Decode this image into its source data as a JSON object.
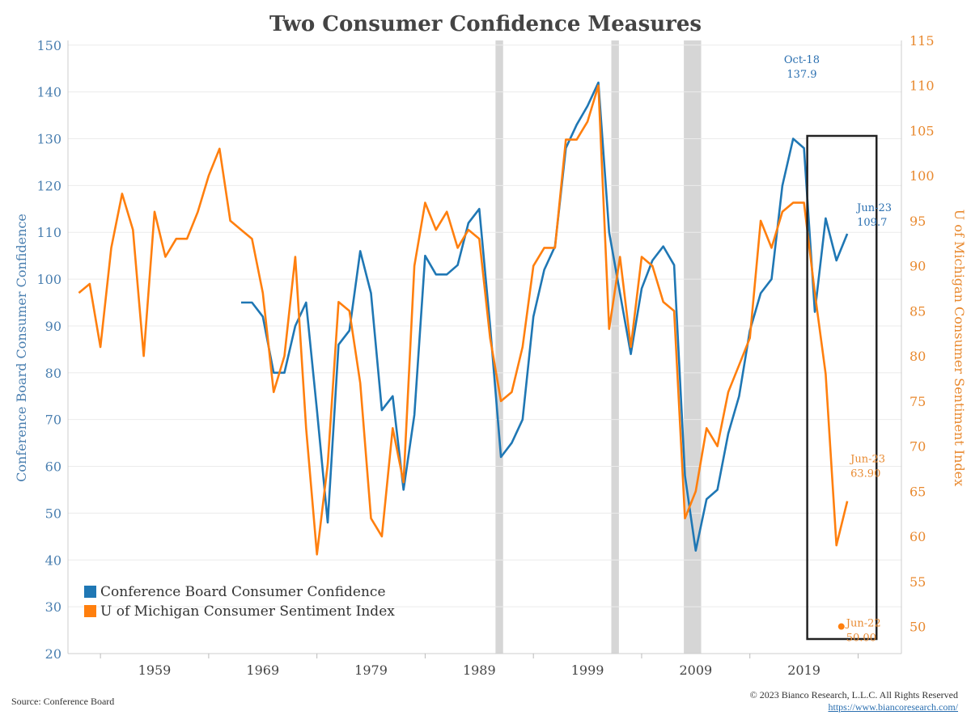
{
  "chart_data": {
    "type": "line",
    "title": "Two Consumer Confidence Measures",
    "y_left_label": "Conference Board Consumer Confidence",
    "y_right_label": "U of Michigan Consumer Sentiment Index",
    "x_ticks": [
      "1959",
      "1969",
      "1979",
      "1989",
      "1999",
      "2009",
      "2019"
    ],
    "x_range": [
      1951,
      2028
    ],
    "y_left_range": [
      20,
      151
    ],
    "y_left_ticks": [
      20,
      30,
      40,
      50,
      60,
      70,
      80,
      90,
      100,
      110,
      120,
      130,
      140,
      150
    ],
    "y_right_range": [
      47,
      115
    ],
    "y_right_ticks": [
      50,
      55,
      60,
      65,
      70,
      75,
      80,
      85,
      90,
      95,
      100,
      105,
      110,
      115
    ],
    "grid": true,
    "legend_position": "bottom-left",
    "recessions": [
      [
        1990.5,
        1991.2
      ],
      [
        2001.2,
        2001.9
      ],
      [
        2007.9,
        2009.5
      ]
    ],
    "highlight_box_years": [
      2019.3,
      2025.7
    ],
    "series": [
      {
        "name": "Conference Board Consumer Confidence",
        "color": "#1f77b4",
        "axis": "left",
        "x": [
          1967,
          1968,
          1969,
          1970,
          1971,
          1972,
          1973,
          1974,
          1975,
          1976,
          1977,
          1978,
          1979,
          1980,
          1981,
          1982,
          1983,
          1984,
          1985,
          1986,
          1987,
          1988,
          1989,
          1990,
          1991,
          1992,
          1993,
          1994,
          1995,
          1996,
          1997,
          1998,
          1999,
          2000,
          2001,
          2002,
          2003,
          2004,
          2005,
          2006,
          2007,
          2008,
          2009,
          2010,
          2011,
          2012,
          2013,
          2014,
          2015,
          2016,
          2017,
          2018,
          2019,
          2020,
          2021,
          2022,
          2023
        ],
        "y": [
          95,
          95,
          92,
          80,
          80,
          90,
          95,
          72,
          48,
          86,
          89,
          106,
          97,
          72,
          75,
          55,
          71,
          105,
          101,
          101,
          103,
          112,
          115,
          90,
          62,
          65,
          70,
          92,
          102,
          107,
          128,
          133,
          137,
          142,
          110,
          97,
          84,
          98,
          104,
          107,
          103,
          58,
          42,
          53,
          55,
          67,
          75,
          89,
          97,
          100,
          120,
          130,
          128,
          93,
          113,
          104,
          109.7
        ]
      },
      {
        "name": "U of Michigan Consumer Sentiment Index",
        "color": "#ff7f0e",
        "axis": "right",
        "x": [
          1952,
          1953,
          1954,
          1955,
          1956,
          1957,
          1958,
          1959,
          1960,
          1961,
          1962,
          1963,
          1964,
          1965,
          1966,
          1967,
          1968,
          1969,
          1970,
          1971,
          1972,
          1973,
          1974,
          1975,
          1976,
          1977,
          1978,
          1979,
          1980,
          1981,
          1982,
          1983,
          1984,
          1985,
          1986,
          1987,
          1988,
          1989,
          1990,
          1991,
          1992,
          1993,
          1994,
          1995,
          1996,
          1997,
          1998,
          1999,
          2000,
          2001,
          2002,
          2003,
          2004,
          2005,
          2006,
          2007,
          2008,
          2009,
          2010,
          2011,
          2012,
          2013,
          2014,
          2015,
          2016,
          2017,
          2018,
          2019,
          2020,
          2021,
          2022,
          2023
        ],
        "y": [
          87,
          88,
          81,
          92,
          98,
          94,
          80,
          96,
          91,
          93,
          93,
          96,
          100,
          103,
          95,
          94,
          93,
          87,
          76,
          80,
          91,
          72,
          58,
          68,
          86,
          85,
          77,
          62,
          60,
          72,
          66,
          90,
          97,
          94,
          96,
          92,
          94,
          93,
          82,
          75,
          76,
          81,
          90,
          92,
          92,
          104,
          104,
          106,
          110,
          83,
          91,
          81,
          91,
          90,
          86,
          85,
          62,
          65,
          72,
          70,
          76,
          79,
          82,
          95,
          92,
          96,
          97,
          97,
          87,
          78,
          59,
          63.9
        ]
      }
    ],
    "annotations": [
      {
        "series": "Conference Board Consumer Confidence",
        "label": "Oct-18",
        "value": "137.9",
        "x": 2018.8,
        "y": 137.9
      },
      {
        "series": "Conference Board Consumer Confidence",
        "label": "Jun-23",
        "value": "109.7",
        "x": 2023.45,
        "y": 109.7
      },
      {
        "series": "U of Michigan Consumer Sentiment Index",
        "label": "Jun-23",
        "value": "63.90",
        "x": 2023.45,
        "y": 63.9
      },
      {
        "series": "U of Michigan Consumer Sentiment Index",
        "label": "Jun-22",
        "value": "50.00",
        "x": 2022.45,
        "y": 50.0
      }
    ]
  },
  "footer": {
    "source": "Source: Conference Board",
    "copyright": "© 2023 Bianco Research, L.L.C. All Rights Reserved",
    "url": "https://www.biancoresearch.com/"
  }
}
